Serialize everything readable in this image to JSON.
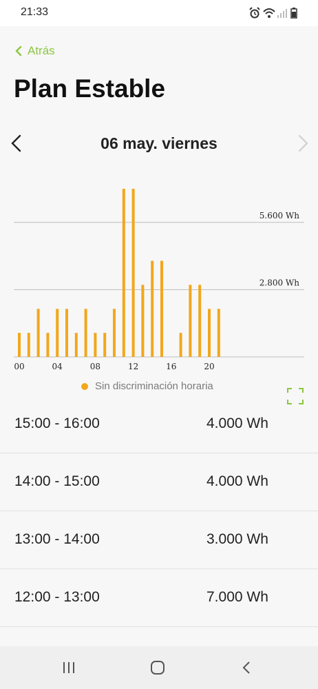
{
  "status_bar": {
    "time": "21:33",
    "icons": [
      "alarm-icon",
      "wifi-icon",
      "signal-icon",
      "battery-icon"
    ]
  },
  "header": {
    "back_label": "Atrás",
    "title": "Plan Estable"
  },
  "date_nav": {
    "date": "06 may. viernes"
  },
  "colors": {
    "accent": "#8cc63f",
    "bar": "#f2a71b"
  },
  "chart_data": {
    "type": "bar",
    "categories": [
      "00",
      "01",
      "02",
      "03",
      "04",
      "05",
      "06",
      "07",
      "08",
      "09",
      "10",
      "11",
      "12",
      "13",
      "14",
      "15",
      "16",
      "17",
      "18",
      "19",
      "20",
      "21"
    ],
    "x_tick_labels": [
      "00",
      "04",
      "08",
      "12",
      "16",
      "20"
    ],
    "values": [
      1000,
      1000,
      2000,
      1000,
      2000,
      2000,
      1000,
      2000,
      1000,
      1000,
      2000,
      7000,
      7000,
      3000,
      4000,
      4000,
      0,
      1000,
      3000,
      3000,
      2000,
      2000
    ],
    "unit": "Wh",
    "reference_lines": [
      {
        "value": 5600,
        "label": "5.600 Wh"
      },
      {
        "value": 2800,
        "label": "2.800 Wh"
      }
    ],
    "ylim": [
      0,
      7000
    ],
    "legend": [
      {
        "label": "Sin discriminación horaria",
        "color": "#f2a71b"
      }
    ],
    "legend_placement": "bottom",
    "grid": false
  },
  "list": [
    {
      "time": "15:00 - 16:00",
      "value": "4.000 Wh"
    },
    {
      "time": "14:00 - 15:00",
      "value": "4.000 Wh"
    },
    {
      "time": "13:00 - 14:00",
      "value": "3.000 Wh"
    },
    {
      "time": "12:00 - 13:00",
      "value": "7.000 Wh"
    }
  ]
}
